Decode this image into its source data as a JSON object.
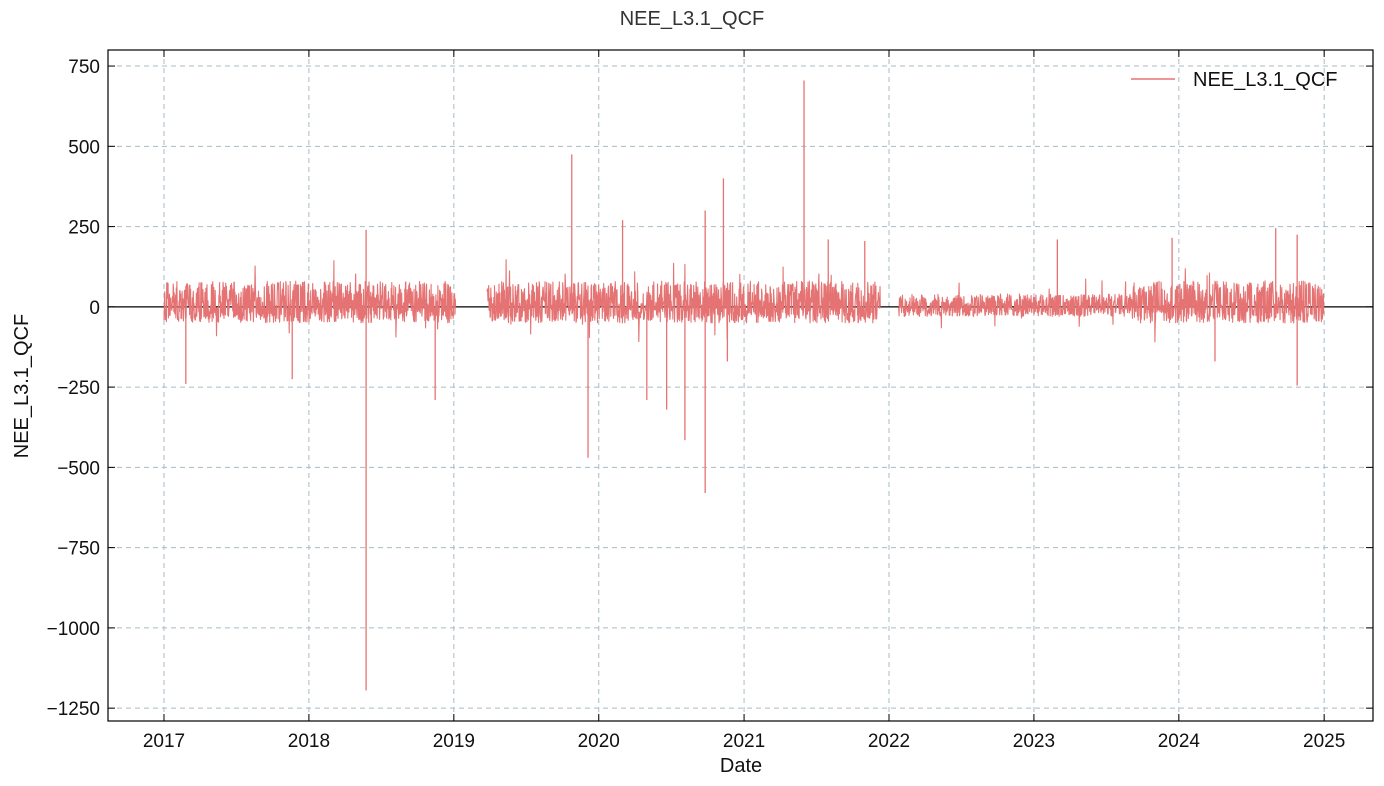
{
  "chart_data": {
    "type": "line",
    "title": "NEE_L3.1_QCF",
    "xlabel": "Date",
    "ylabel": "NEE_L3.1_QCF",
    "x_ticks": [
      "2017",
      "2018",
      "2019",
      "2020",
      "2021",
      "2022",
      "2023",
      "2024",
      "2025"
    ],
    "y_ticks": [
      750,
      500,
      250,
      0,
      -250,
      -500,
      -750,
      -1000,
      -1250
    ],
    "y_tick_labels": [
      "750",
      "500",
      "250",
      "0",
      "−250",
      "−500",
      "−750",
      "−1000",
      "−1250"
    ],
    "xlim": [
      "2016-08-13",
      "2025-05-04"
    ],
    "ylim": [
      -1290,
      800
    ],
    "grid": true,
    "legend_position": "top-right",
    "zero_line": true,
    "series": [
      {
        "name": "NEE_L3.1_QCF",
        "color": "#e57373",
        "data_range": [
          "2017-01-01",
          "2024-12-31"
        ],
        "typical_band": [
          -50,
          80
        ],
        "gaps": [
          [
            "2019-01-05",
            "2019-03-25"
          ],
          [
            "2021-12-10",
            "2022-01-25"
          ]
        ],
        "quiet_segments": [
          [
            "2022-01-25",
            "2023-09-01"
          ]
        ],
        "extremes": [
          {
            "date": "2017-02-25",
            "value": -240
          },
          {
            "date": "2017-11-20",
            "value": -225
          },
          {
            "date": "2018-05-25",
            "value": 240
          },
          {
            "date": "2018-05-25",
            "value": -1195
          },
          {
            "date": "2018-11-15",
            "value": -290
          },
          {
            "date": "2019-10-25",
            "value": 475
          },
          {
            "date": "2019-12-05",
            "value": -470
          },
          {
            "date": "2020-03-01",
            "value": 270
          },
          {
            "date": "2020-05-01",
            "value": -290
          },
          {
            "date": "2020-06-20",
            "value": -320
          },
          {
            "date": "2020-08-05",
            "value": -415
          },
          {
            "date": "2020-09-25",
            "value": -580
          },
          {
            "date": "2020-09-25",
            "value": 300
          },
          {
            "date": "2020-11-10",
            "value": 400
          },
          {
            "date": "2020-11-20",
            "value": -170
          },
          {
            "date": "2021-06-01",
            "value": 705
          },
          {
            "date": "2021-08-01",
            "value": 210
          },
          {
            "date": "2021-11-01",
            "value": 205
          },
          {
            "date": "2023-03-01",
            "value": 210
          },
          {
            "date": "2023-12-15",
            "value": 215
          },
          {
            "date": "2024-04-01",
            "value": -170
          },
          {
            "date": "2024-09-01",
            "value": 245
          },
          {
            "date": "2024-10-25",
            "value": 225
          },
          {
            "date": "2024-10-25",
            "value": -245
          }
        ]
      }
    ]
  }
}
